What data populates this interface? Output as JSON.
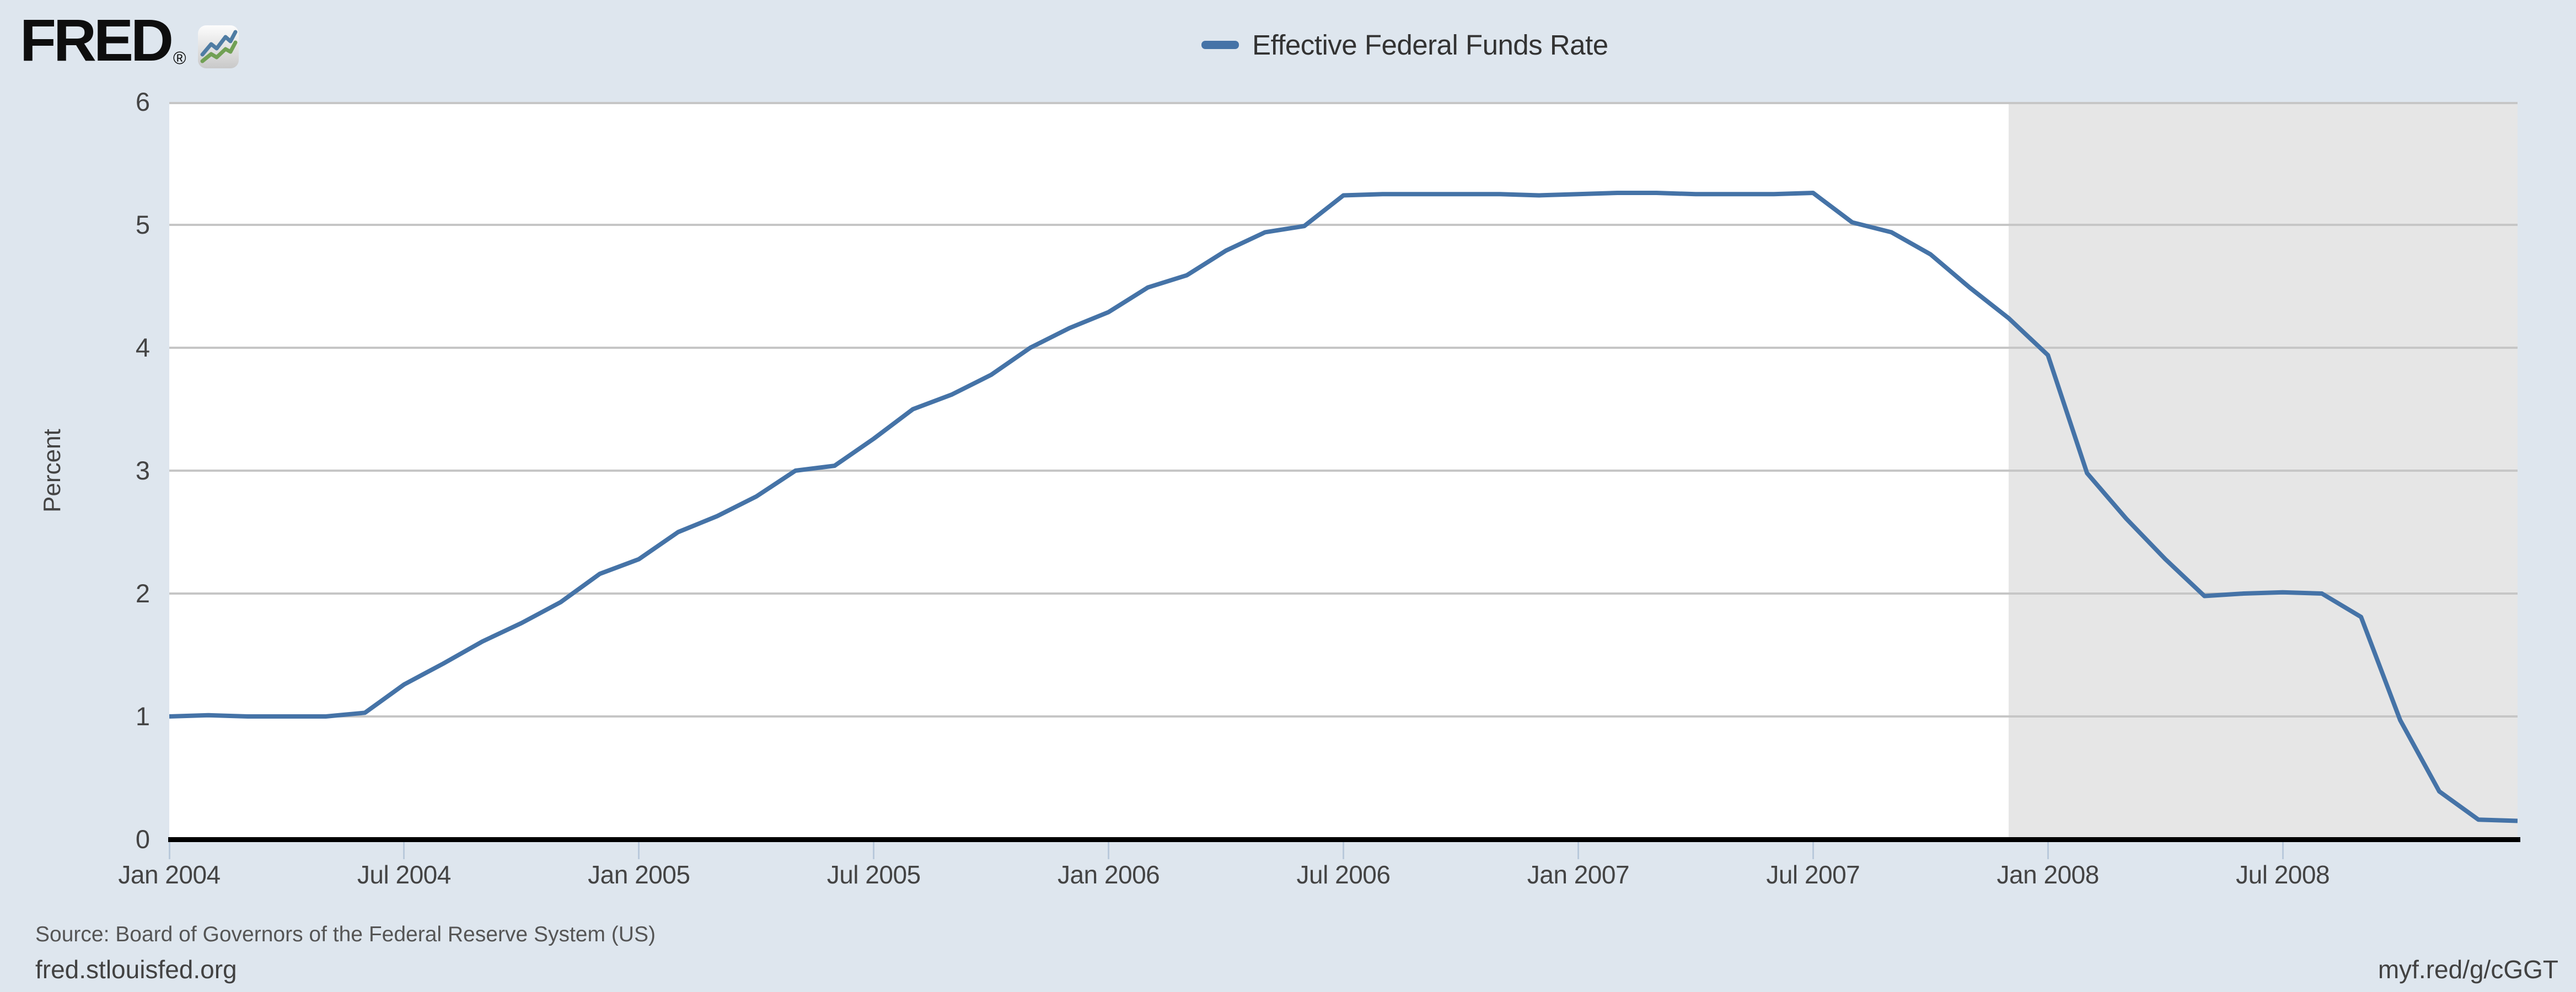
{
  "header": {
    "logo_text": "FRED",
    "registered_mark": "®"
  },
  "legend": {
    "series_label": "Effective Federal Funds Rate"
  },
  "y_axis": {
    "title": "Percent",
    "tick_labels": [
      "6",
      "5",
      "4",
      "3",
      "2",
      "1",
      "0"
    ]
  },
  "x_axis": {
    "tick_labels": [
      "Jan 2004",
      "Jul 2004",
      "Jan 2005",
      "Jul 2005",
      "Jan 2006",
      "Jul 2006",
      "Jan 2007",
      "Jul 2007",
      "Jan 2008",
      "Jul 2008"
    ]
  },
  "footer": {
    "source_text": "Source: Board of Governors of the Federal Reserve System (US)",
    "site_text": "fred.stlouisfed.org",
    "shortlink_text": "myf.red/g/cGGT"
  },
  "colors": {
    "page_background": "#dee6ee",
    "plot_background": "#ffffff",
    "recession_band": "#e6e6e6",
    "gridline": "#c6c6c6",
    "axis_line": "#000000",
    "series_line": "#4573a7",
    "tick_mark": "#b9c9db",
    "logo_icon_blue": "#4f7ca3",
    "logo_icon_green": "#71a054"
  },
  "chart_data": {
    "type": "line",
    "title": "Effective Federal Funds Rate",
    "xlabel": "",
    "ylabel": "Percent",
    "ylim": [
      0,
      6
    ],
    "grid": "horizontal",
    "legend_position": "top-center",
    "x": [
      "2004-01",
      "2004-02",
      "2004-03",
      "2004-04",
      "2004-05",
      "2004-06",
      "2004-07",
      "2004-08",
      "2004-09",
      "2004-10",
      "2004-11",
      "2004-12",
      "2005-01",
      "2005-02",
      "2005-03",
      "2005-04",
      "2005-05",
      "2005-06",
      "2005-07",
      "2005-08",
      "2005-09",
      "2005-10",
      "2005-11",
      "2005-12",
      "2006-01",
      "2006-02",
      "2006-03",
      "2006-04",
      "2006-05",
      "2006-06",
      "2006-07",
      "2006-08",
      "2006-09",
      "2006-10",
      "2006-11",
      "2006-12",
      "2007-01",
      "2007-02",
      "2007-03",
      "2007-04",
      "2007-05",
      "2007-06",
      "2007-07",
      "2007-08",
      "2007-09",
      "2007-10",
      "2007-11",
      "2007-12",
      "2008-01",
      "2008-02",
      "2008-03",
      "2008-04",
      "2008-05",
      "2008-06",
      "2008-07",
      "2008-08",
      "2008-09",
      "2008-10",
      "2008-11",
      "2008-12",
      "2009-01"
    ],
    "series": [
      {
        "name": "Effective Federal Funds Rate",
        "color": "#4573a7",
        "values": [
          1.0,
          1.01,
          1.0,
          1.0,
          1.0,
          1.03,
          1.26,
          1.43,
          1.61,
          1.76,
          1.93,
          2.16,
          2.28,
          2.5,
          2.63,
          2.79,
          3.0,
          3.04,
          3.26,
          3.5,
          3.62,
          3.78,
          4.0,
          4.16,
          4.29,
          4.49,
          4.59,
          4.79,
          4.94,
          4.99,
          5.24,
          5.25,
          5.25,
          5.25,
          5.25,
          5.24,
          5.25,
          5.26,
          5.26,
          5.25,
          5.25,
          5.25,
          5.26,
          5.02,
          4.94,
          4.76,
          4.49,
          4.24,
          3.94,
          2.98,
          2.61,
          2.28,
          1.98,
          2.0,
          2.01,
          2.0,
          1.81,
          0.97,
          0.39,
          0.16,
          0.15
        ]
      }
    ],
    "recession_shading": {
      "start": "2007-12",
      "end": "2009-01"
    }
  }
}
